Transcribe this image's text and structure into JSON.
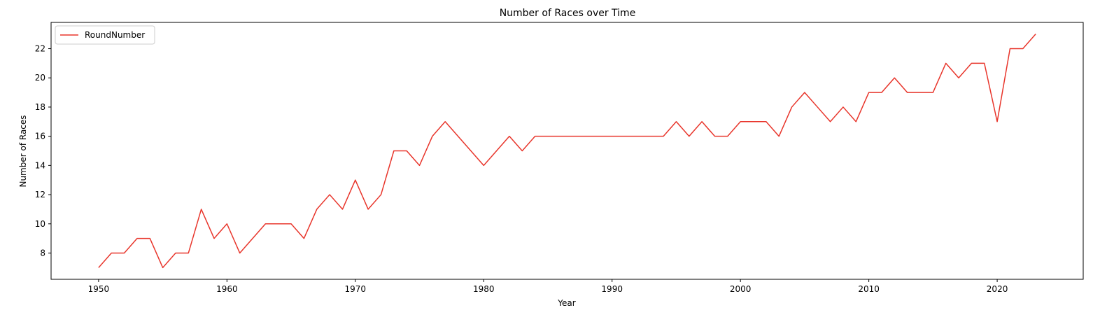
{
  "chart_data": {
    "type": "line",
    "title": "Number of Races over Time",
    "xlabel": "Year",
    "ylabel": "Number of Races",
    "xlim": [
      1946.3,
      2026.7
    ],
    "ylim": [
      6.2,
      23.8
    ],
    "xticks": [
      1950,
      1960,
      1970,
      1980,
      1990,
      2000,
      2010,
      2020
    ],
    "yticks": [
      8,
      10,
      12,
      14,
      16,
      18,
      20,
      22
    ],
    "grid": false,
    "legend": "upper-left",
    "series": [
      {
        "name": "RoundNumber",
        "color": "#e8352b",
        "x": [
          1950,
          1951,
          1952,
          1953,
          1954,
          1955,
          1956,
          1957,
          1958,
          1959,
          1960,
          1961,
          1962,
          1963,
          1964,
          1965,
          1966,
          1967,
          1968,
          1969,
          1970,
          1971,
          1972,
          1973,
          1974,
          1975,
          1976,
          1977,
          1978,
          1979,
          1980,
          1981,
          1982,
          1983,
          1984,
          1985,
          1986,
          1987,
          1988,
          1989,
          1990,
          1991,
          1992,
          1993,
          1994,
          1995,
          1996,
          1997,
          1998,
          1999,
          2000,
          2001,
          2002,
          2003,
          2004,
          2005,
          2006,
          2007,
          2008,
          2009,
          2010,
          2011,
          2012,
          2013,
          2014,
          2015,
          2016,
          2017,
          2018,
          2019,
          2020,
          2021,
          2022,
          2023
        ],
        "values": [
          7,
          8,
          8,
          9,
          9,
          7,
          8,
          8,
          11,
          9,
          10,
          8,
          9,
          10,
          10,
          10,
          9,
          11,
          12,
          11,
          13,
          11,
          12,
          15,
          15,
          14,
          16,
          17,
          16,
          15,
          14,
          15,
          16,
          15,
          16,
          16,
          16,
          16,
          16,
          16,
          16,
          16,
          16,
          16,
          16,
          17,
          16,
          17,
          16,
          16,
          17,
          17,
          17,
          16,
          18,
          19,
          18,
          17,
          18,
          17,
          19,
          19,
          20,
          19,
          19,
          19,
          21,
          20,
          21,
          21,
          17,
          22,
          22,
          23
        ]
      }
    ]
  }
}
